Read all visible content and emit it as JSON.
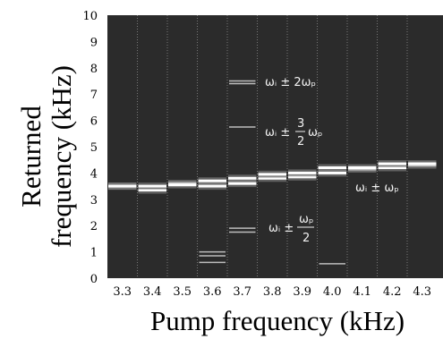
{
  "chart_data": {
    "type": "heatmap",
    "title": "",
    "xlabel": "Pump frequency (kHz)",
    "ylabel_line1": "Returned",
    "ylabel_line2": "frequency (kHz)",
    "x": [
      3.3,
      3.4,
      3.5,
      3.6,
      3.7,
      3.8,
      3.9,
      4.0,
      4.1,
      4.2,
      4.3
    ],
    "x_tick_labels": [
      "3.3",
      "3.4",
      "3.5",
      "3.6",
      "3.7",
      "3.8",
      "3.9",
      "4.0",
      "4.1",
      "4.2",
      "4.3"
    ],
    "ylim": [
      0,
      10
    ],
    "y_ticks": [
      0,
      1,
      2,
      3,
      4,
      5,
      6,
      7,
      8,
      9,
      10
    ],
    "y_tick_labels": [
      "0",
      "1",
      "2",
      "3",
      "4",
      "5",
      "6",
      "7",
      "8",
      "9",
      "10"
    ],
    "grid": "vertical dotted",
    "background_color": "#2b2b2b",
    "line_color": "#ffffff",
    "series": [
      {
        "values": [
          3.5,
          3.35,
          3.6,
          3.5,
          3.6,
          3.8,
          3.85,
          4.0,
          4.15,
          4.2,
          4.3
        ]
      },
      {
        "values": [
          3.5,
          3.5,
          3.55,
          3.7,
          3.8,
          3.95,
          4.0,
          4.2,
          4.2,
          4.35,
          4.35
        ]
      }
    ],
    "faint_lines": [
      {
        "x": 3.7,
        "y": 7.4
      },
      {
        "x": 3.7,
        "y": 7.5
      },
      {
        "x": 3.7,
        "y": 5.75
      },
      {
        "x": 3.7,
        "y": 1.75
      },
      {
        "x": 3.7,
        "y": 1.9
      },
      {
        "x": 3.6,
        "y": 0.6
      },
      {
        "x": 3.6,
        "y": 0.85
      },
      {
        "x": 3.6,
        "y": 1.0
      },
      {
        "x": 4.0,
        "y": 0.55
      }
    ],
    "annotations": [
      {
        "id": "a1",
        "main": "ωᵢ ± 2ωₚ",
        "type": "simple"
      },
      {
        "id": "a2",
        "prefix": "ωᵢ ±",
        "num": "3",
        "den": "2",
        "suffix": "ωₚ",
        "type": "frac"
      },
      {
        "id": "a3",
        "main": "ωᵢ ± ωₚ",
        "type": "simple"
      },
      {
        "id": "a4",
        "prefix": "ωᵢ ±",
        "num": "ωₚ",
        "den": "2",
        "type": "frac-mixed"
      }
    ]
  }
}
